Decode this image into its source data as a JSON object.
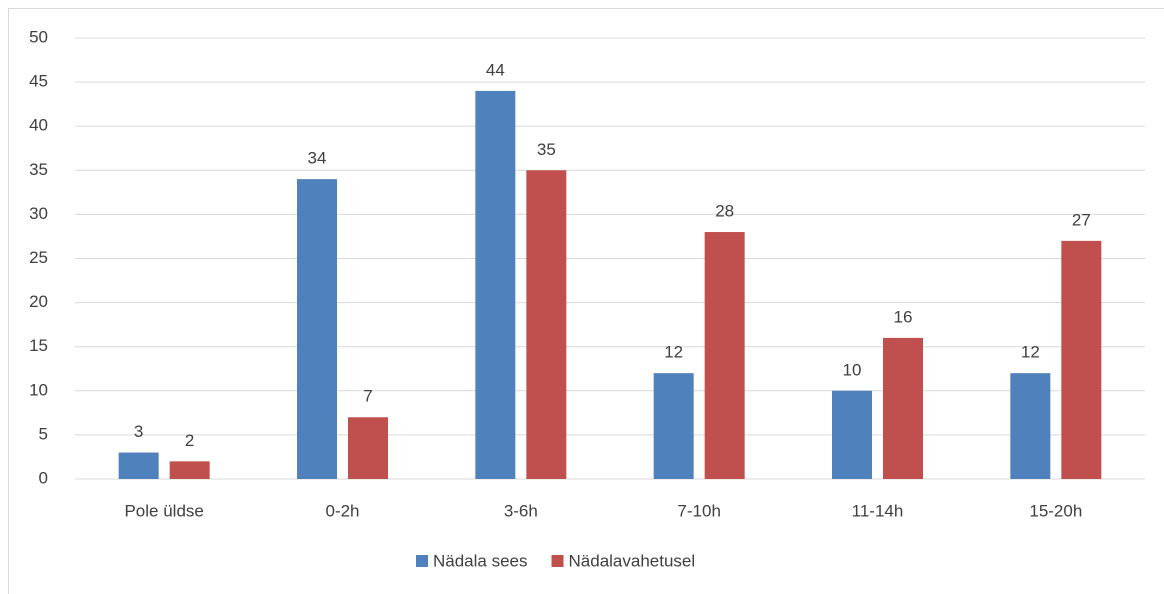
{
  "chart_data": {
    "type": "bar",
    "categories": [
      "Pole üldse",
      "0-2h",
      "3-6h",
      "7-10h",
      "11-14h",
      "15-20h"
    ],
    "series": [
      {
        "name": "Nädala sees",
        "color": "#4f81bd",
        "values": [
          3,
          34,
          44,
          12,
          10,
          12
        ]
      },
      {
        "name": "Nädalavahetusel",
        "color": "#c0504d",
        "values": [
          2,
          7,
          35,
          28,
          16,
          27
        ]
      }
    ],
    "ylim": [
      0,
      50
    ],
    "yticks": [
      0,
      5,
      10,
      15,
      20,
      25,
      30,
      35,
      40,
      45,
      50
    ],
    "grid": true,
    "legend": "bottom",
    "data_labels": true
  }
}
